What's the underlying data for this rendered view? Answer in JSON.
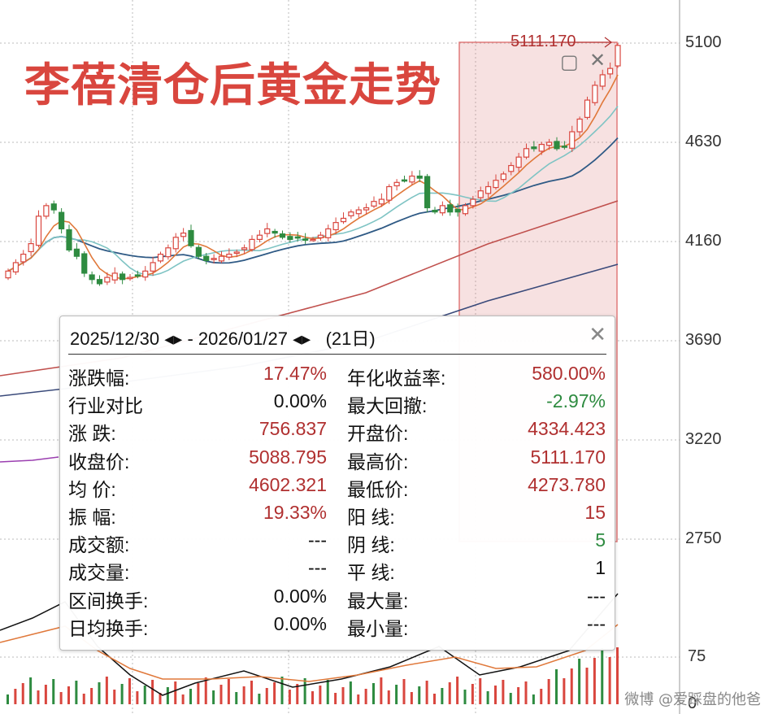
{
  "title": "李蓓清仓后黄金走势",
  "price_axis": {
    "labels": [
      "5100",
      "4630",
      "4160",
      "3690",
      "3220",
      "2750"
    ]
  },
  "volume_axis": {
    "labels": [
      "75",
      "0"
    ]
  },
  "range_high_marker": "5111.170",
  "popup": {
    "date_start": "2025/12/30",
    "date_end": "2026/01/27",
    "arrows": "◂▸",
    "separator": "-",
    "days": "(21日)",
    "left_column": [
      {
        "label": "涨跌幅:",
        "value": "17.47%",
        "tone": "red"
      },
      {
        "label": "行业对比",
        "value": "0.00%",
        "tone": "black"
      },
      {
        "label": "涨  跌:",
        "value": "756.837",
        "tone": "red"
      },
      {
        "label": "收盘价:",
        "value": "5088.795",
        "tone": "red"
      },
      {
        "label": "均  价:",
        "value": "4602.321",
        "tone": "red"
      },
      {
        "label": "振  幅:",
        "value": "19.33%",
        "tone": "red"
      },
      {
        "label": "成交额:",
        "value": "---",
        "tone": "black"
      },
      {
        "label": "成交量:",
        "value": "---",
        "tone": "black"
      },
      {
        "label": "区间换手:",
        "value": "0.00%",
        "tone": "black"
      },
      {
        "label": "日均换手:",
        "value": "0.00%",
        "tone": "black"
      }
    ],
    "right_column": [
      {
        "label": "年化收益率:",
        "value": "580.00%",
        "tone": "red"
      },
      {
        "label": "最大回撤:",
        "value": "-2.97%",
        "tone": "green"
      },
      {
        "label": "开盘价:",
        "value": "4334.423",
        "tone": "red"
      },
      {
        "label": "最高价:",
        "value": "5111.170",
        "tone": "red"
      },
      {
        "label": "最低价:",
        "value": "4273.780",
        "tone": "red"
      },
      {
        "label": "阳  线:",
        "value": "15",
        "tone": "red"
      },
      {
        "label": "阴  线:",
        "value": "5",
        "tone": "green"
      },
      {
        "label": "平  线:",
        "value": "1",
        "tone": "black"
      },
      {
        "label": "最大量:",
        "value": "---",
        "tone": "black"
      },
      {
        "label": "最小量:",
        "value": "---",
        "tone": "black"
      }
    ]
  },
  "watermark": "微博 @爱踩盘的他爸",
  "colors": {
    "up": "#d9463e",
    "down": "#2e8b40",
    "ma5": "#e0783a",
    "ma10": "#7fc4c4",
    "ma20": "#2f5a85",
    "ma60": "#c0504d",
    "ma120": "#3a4a7a",
    "highlight": "rgba(220,120,120,0.22)"
  },
  "chart_data": {
    "type": "candlestick",
    "ylim": [
      2750,
      5100
    ],
    "highlight_range": [
      "2025/12/30",
      "2026/01/27"
    ],
    "closes": [
      4020,
      4060,
      4100,
      4150,
      4280,
      4330,
      4310,
      4220,
      4120,
      4090,
      4010,
      3980,
      3960,
      3990,
      4010,
      3980,
      3990,
      4000,
      4020,
      4060,
      4100,
      4130,
      4180,
      4200,
      4140,
      4090,
      4070,
      4080,
      4090,
      4100,
      4110,
      4130,
      4170,
      4190,
      4220,
      4200,
      4180,
      4170,
      4180,
      4170,
      4170,
      4190,
      4220,
      4250,
      4270,
      4300,
      4310,
      4320,
      4350,
      4360,
      4420,
      4440,
      4450,
      4470,
      4460,
      4320,
      4300,
      4330,
      4300,
      4300,
      4330,
      4360,
      4400,
      4420,
      4450,
      4480,
      4520,
      4560,
      4600,
      4600,
      4620,
      4630,
      4600,
      4610,
      4680,
      4740,
      4830,
      4900,
      4950,
      4980,
      5089
    ]
  }
}
